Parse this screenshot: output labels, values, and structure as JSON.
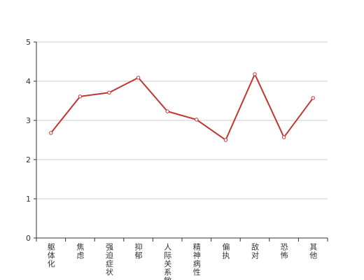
{
  "chart_data": {
    "type": "line",
    "categories": [
      "躯体化",
      "焦虑",
      "强迫症状",
      "抑郁",
      "人际关系敏感",
      "精神病性",
      "偏执",
      "敌对",
      "恐怖",
      "其他"
    ],
    "values": [
      2.68,
      3.61,
      3.71,
      4.09,
      3.23,
      3.02,
      2.5,
      4.18,
      2.57,
      3.57
    ],
    "color": "#c23531",
    "ylim": [
      0,
      5
    ],
    "yticks": [
      0,
      1,
      2,
      3,
      4,
      5
    ],
    "grid": true
  }
}
